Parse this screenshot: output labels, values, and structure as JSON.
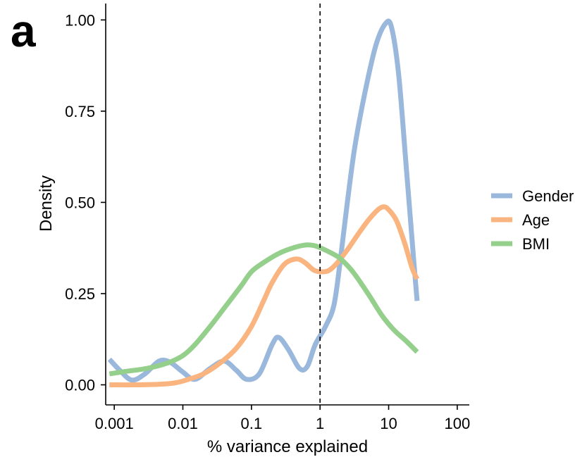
{
  "panel_label": "a",
  "chart_data": {
    "type": "line",
    "xlabel": "% variance explained",
    "ylabel": "Density",
    "x_scale": "log",
    "xlim": [
      0.00075,
      150
    ],
    "ylim": [
      -0.055,
      1.045
    ],
    "x_ticks": [
      {
        "value": 0.001,
        "label": "0.001"
      },
      {
        "value": 0.01,
        "label": "0.01"
      },
      {
        "value": 0.1,
        "label": "0.1"
      },
      {
        "value": 1,
        "label": "1"
      },
      {
        "value": 10,
        "label": "10"
      },
      {
        "value": 100,
        "label": "100"
      }
    ],
    "y_ticks": [
      {
        "value": 0,
        "label": "0.00"
      },
      {
        "value": 0.25,
        "label": "0.25"
      },
      {
        "value": 0.5,
        "label": "0.50"
      },
      {
        "value": 0.75,
        "label": "0.75"
      },
      {
        "value": 1.0,
        "label": "1.00"
      }
    ],
    "reference_line": {
      "x": 1,
      "style": "dashed"
    },
    "grid": false,
    "legend_position": "right",
    "series": [
      {
        "name": "Gender",
        "color": "#9ab7dc",
        "points": [
          [
            0.00085,
            0.07
          ],
          [
            0.0012,
            0.04
          ],
          [
            0.0018,
            0.013
          ],
          [
            0.0028,
            0.03
          ],
          [
            0.0045,
            0.065
          ],
          [
            0.0065,
            0.062
          ],
          [
            0.01,
            0.035
          ],
          [
            0.015,
            0.015
          ],
          [
            0.025,
            0.045
          ],
          [
            0.04,
            0.065
          ],
          [
            0.06,
            0.04
          ],
          [
            0.085,
            0.015
          ],
          [
            0.13,
            0.03
          ],
          [
            0.2,
            0.11
          ],
          [
            0.25,
            0.13
          ],
          [
            0.35,
            0.095
          ],
          [
            0.5,
            0.045
          ],
          [
            0.65,
            0.05
          ],
          [
            0.85,
            0.11
          ],
          [
            1.2,
            0.16
          ],
          [
            1.6,
            0.22
          ],
          [
            2.0,
            0.35
          ],
          [
            2.5,
            0.5
          ],
          [
            3.2,
            0.65
          ],
          [
            4.5,
            0.8
          ],
          [
            6.5,
            0.93
          ],
          [
            9.0,
            0.99
          ],
          [
            11.0,
            0.98
          ],
          [
            14.0,
            0.85
          ],
          [
            18.0,
            0.6
          ],
          [
            23.0,
            0.35
          ],
          [
            26.0,
            0.23
          ]
        ]
      },
      {
        "name": "Age",
        "color": "#f9b47f",
        "points": [
          [
            0.00085,
            0.0
          ],
          [
            0.002,
            0.0
          ],
          [
            0.005,
            0.002
          ],
          [
            0.008,
            0.006
          ],
          [
            0.012,
            0.015
          ],
          [
            0.02,
            0.03
          ],
          [
            0.035,
            0.06
          ],
          [
            0.06,
            0.1
          ],
          [
            0.1,
            0.16
          ],
          [
            0.15,
            0.23
          ],
          [
            0.2,
            0.28
          ],
          [
            0.3,
            0.33
          ],
          [
            0.45,
            0.345
          ],
          [
            0.6,
            0.335
          ],
          [
            0.8,
            0.315
          ],
          [
            1.0,
            0.31
          ],
          [
            1.3,
            0.312
          ],
          [
            1.7,
            0.33
          ],
          [
            2.5,
            0.37
          ],
          [
            3.5,
            0.41
          ],
          [
            5.0,
            0.45
          ],
          [
            7.0,
            0.48
          ],
          [
            8.5,
            0.488
          ],
          [
            10.0,
            0.48
          ],
          [
            13.0,
            0.45
          ],
          [
            17.0,
            0.39
          ],
          [
            22.0,
            0.32
          ],
          [
            26.0,
            0.29
          ]
        ]
      },
      {
        "name": "BMI",
        "color": "#94cf8c",
        "points": [
          [
            0.00085,
            0.03
          ],
          [
            0.0015,
            0.037
          ],
          [
            0.003,
            0.045
          ],
          [
            0.006,
            0.06
          ],
          [
            0.01,
            0.08
          ],
          [
            0.015,
            0.11
          ],
          [
            0.025,
            0.16
          ],
          [
            0.04,
            0.21
          ],
          [
            0.07,
            0.27
          ],
          [
            0.1,
            0.31
          ],
          [
            0.15,
            0.335
          ],
          [
            0.25,
            0.36
          ],
          [
            0.4,
            0.375
          ],
          [
            0.6,
            0.383
          ],
          [
            0.8,
            0.382
          ],
          [
            1.0,
            0.376
          ],
          [
            1.5,
            0.36
          ],
          [
            2.0,
            0.345
          ],
          [
            3.0,
            0.31
          ],
          [
            5.0,
            0.25
          ],
          [
            8.0,
            0.19
          ],
          [
            12.0,
            0.15
          ],
          [
            18.0,
            0.12
          ],
          [
            26.0,
            0.09
          ]
        ]
      }
    ]
  }
}
